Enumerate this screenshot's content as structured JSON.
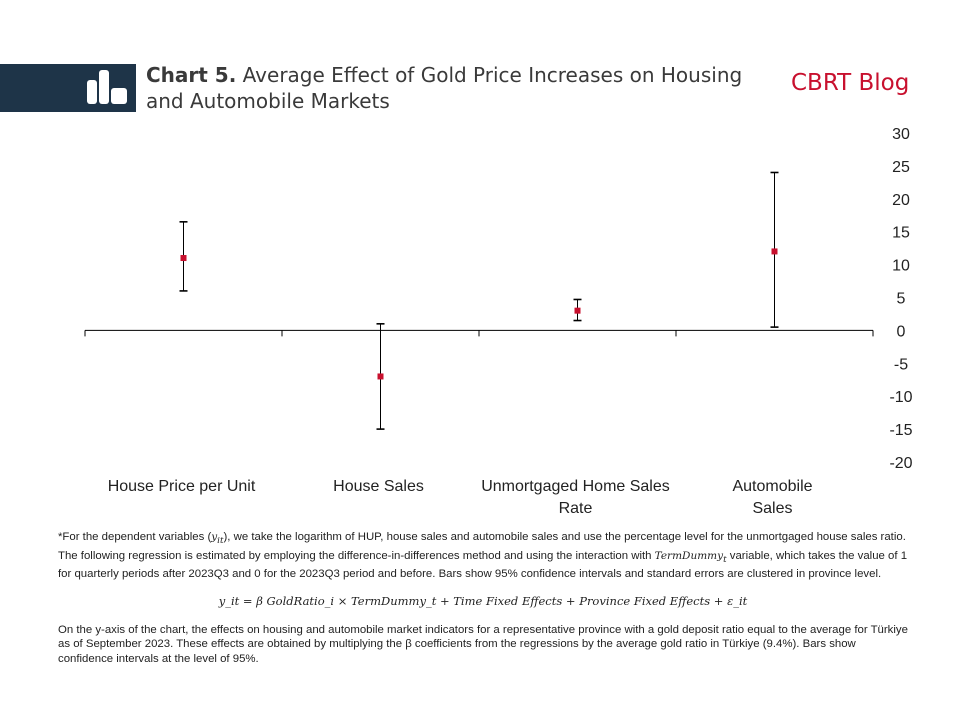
{
  "header": {
    "title_number": "Chart 5.",
    "title_text": "Average Effect of Gold Price Increases on Housing and Automobile Markets",
    "brand": "CBRT Blog"
  },
  "colors": {
    "band": "#1e3448",
    "marker": "#c8102e",
    "brand": "#c8102e",
    "axis": "#000000"
  },
  "icons": {
    "logo": "bar-chart-icon"
  },
  "chart_data": {
    "type": "scatter",
    "error_bars": true,
    "categories": [
      [
        "House Price per Unit"
      ],
      [
        "House Sales"
      ],
      [
        "Unmortgaged Home Sales",
        "Rate"
      ],
      [
        "Automobile",
        "Sales"
      ]
    ],
    "values": [
      11,
      -7,
      3,
      12
    ],
    "lower": [
      6,
      -15,
      1.5,
      0.5
    ],
    "upper": [
      16.5,
      1,
      4.7,
      24
    ],
    "ylim": [
      -20,
      30
    ],
    "yticks": [
      30,
      25,
      20,
      15,
      10,
      5,
      0,
      -5,
      -10,
      -15,
      -20
    ],
    "y_axis_position": "right",
    "grid": false,
    "legend": "none"
  },
  "notes": {
    "p1_a": "*For the dependent variables (",
    "p1_var": "y",
    "p1_sub": "it",
    "p1_b": "), we take the logarithm of HUP, house sales and automobile sales and use the percentage level for the unmortgaged house sales ratio. The following regression is estimated by employing the difference-in-differences method and using the interaction with ",
    "p1_term": "TermDummy",
    "p1_term_sub": "t",
    "p1_c": " variable, which takes the value of 1 for quarterly periods after 2023Q3 and 0 for the 2023Q3 period and before. Bars show 95% confidence intervals and standard errors are clustered in province level.",
    "formula": "y_it = β GoldRatio_i × TermDummy_t + Time Fixed Effects + Province Fixed Effects + ε_it",
    "p2": "On the y-axis of the chart, the effects on housing and automobile market indicators for a representative province with a gold deposit ratio equal to the average for Türkiye as of September 2023. These effects are obtained by multiplying the β coefficients from the regressions by the average gold ratio in Türkiye (9.4%). Bars show confidence intervals at the level of 95%."
  }
}
